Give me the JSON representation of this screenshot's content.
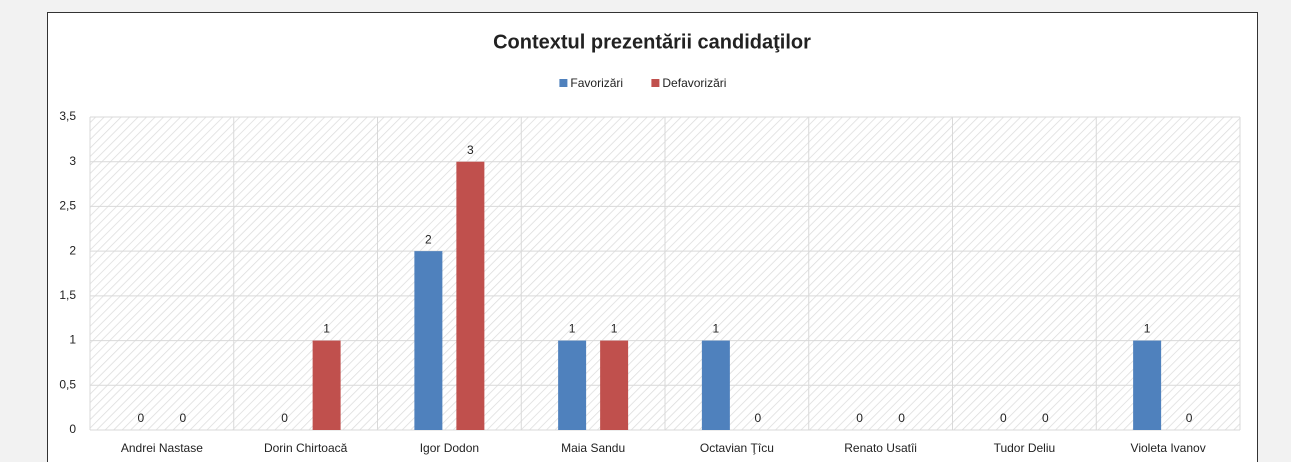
{
  "chart_data": {
    "type": "bar",
    "title": "Contextul prezentării candidaţilor",
    "categories": [
      "Andrei Nastase",
      "Dorin Chirtoacă",
      "Igor Dodon",
      "Maia Sandu",
      "Octavian Ţîcu",
      "Renato Usatîi",
      "Tudor Deliu",
      "Violeta Ivanov"
    ],
    "series": [
      {
        "name": "Favorizări",
        "color": "#4f81bd",
        "values": [
          0,
          0,
          2,
          1,
          1,
          0,
          0,
          1
        ]
      },
      {
        "name": "Defavorizări",
        "color": "#c0504d",
        "values": [
          0,
          1,
          3,
          1,
          0,
          0,
          0,
          0
        ]
      }
    ],
    "ylim": [
      0,
      3.5
    ],
    "yticks": [
      0,
      {
        "value": 0.5,
        "label": "0,5"
      },
      1,
      {
        "value": 1.5,
        "label": "1,5"
      },
      2,
      {
        "value": 2.5,
        "label": "2,5"
      },
      3,
      {
        "value": 3.5,
        "label": "3,5"
      }
    ],
    "grid": true,
    "legend": "top"
  }
}
